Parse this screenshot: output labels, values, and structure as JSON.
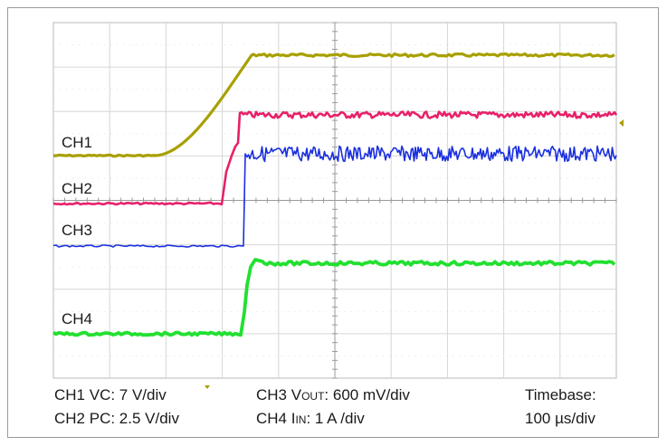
{
  "chart_data": {
    "type": "line",
    "grid": true,
    "x_divisions": 10,
    "y_divisions": 8,
    "series": [
      {
        "name": "CH1",
        "color": "#a8a000",
        "label": "CH1"
      },
      {
        "name": "CH2",
        "color": "#e8206a",
        "label": "CH2"
      },
      {
        "name": "CH3",
        "color": "#1a2fe0",
        "label": "CH3"
      },
      {
        "name": "CH4",
        "color": "#22e030",
        "label": "CH4"
      }
    ]
  },
  "captions": {
    "ch1": "CH1 VC: 7 V/div",
    "ch2": "CH2 PC: 2.5 V/div",
    "ch3_prefix": "CH3 V",
    "ch3_sub": "OUT",
    "ch3_suffix": ": 600 mV/div",
    "ch4_prefix": "CH4 I",
    "ch4_sub": "IN",
    "ch4_suffix": ": 1 A /div",
    "timebase_label": "Timebase:",
    "timebase_value": "100 µs/div"
  },
  "markers": {
    "trigger_color": "#a8a000"
  }
}
